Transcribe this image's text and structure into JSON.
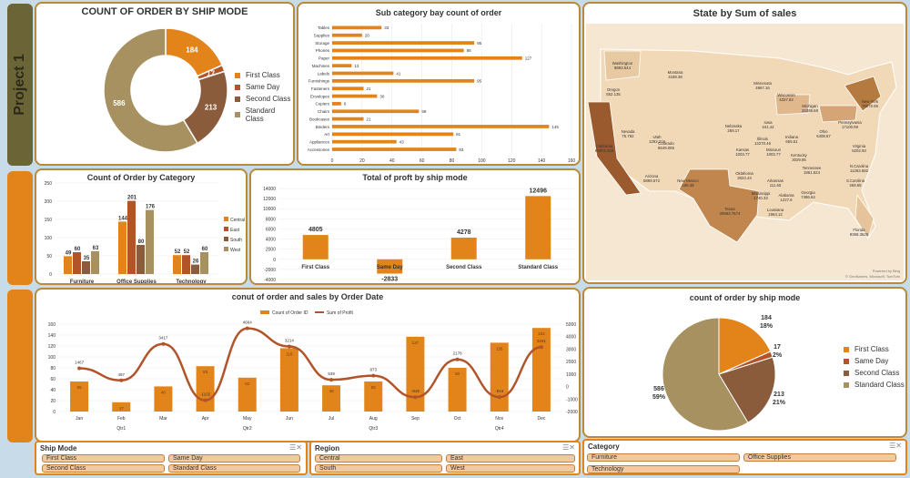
{
  "project_label": "Project 1",
  "colors": {
    "orange": "#e3841b",
    "rust": "#b2542a",
    "brown": "#8b5c3c",
    "tan": "#a89160"
  },
  "donut": {
    "title": "COUNT OF ORDER BY SHIP MODE",
    "legend": [
      "First Class",
      "Same Day",
      "Second Class",
      "Standard Class"
    ]
  },
  "subcat": {
    "title": "Sub category bay count of order"
  },
  "map": {
    "title": "State by Sum of sales",
    "credit": "Powered by Bing",
    "copyright": "© GeoNames, Microsoft, TomTom"
  },
  "category": {
    "title": "Count of Order by Category",
    "legend": [
      "Central",
      "East",
      "South",
      "West"
    ]
  },
  "profit": {
    "title": "Total of proft by ship mode"
  },
  "combo": {
    "title": "conut of order  and sales by Order Date",
    "legend": [
      "Count of Order ID",
      "Sum of Profit"
    ]
  },
  "pie": {
    "title": "count of order by ship mode",
    "legend": [
      "First Class",
      "Same Day",
      "Second Class",
      "Standard Class"
    ]
  },
  "slicers": {
    "ship_mode": {
      "title": "Ship Mode",
      "items": [
        "First Class",
        "Same Day",
        "Second Class",
        "Standard Class"
      ]
    },
    "region": {
      "title": "Region",
      "items": [
        "Central",
        "East",
        "South",
        "West"
      ]
    },
    "category": {
      "title": "Category",
      "items": [
        "Furniture",
        "Office Supplies",
        "Technology"
      ]
    }
  },
  "map_labels": [
    "Washington\n8893.644",
    "Montana\n4189.38",
    "Oregon\n552.135",
    "Minnesota\n4967.16",
    "Wisconsin\n4327.82",
    "Michigan\n26386.68",
    "New York\n76070.96",
    "Nevada\n75.792",
    "Utah\n1293.216",
    "Colorado\n8649.085",
    "Nebraska\n258.17",
    "Iowa\n441.42",
    "Illinois\n13270.46",
    "Indiana\n655.51",
    "Ohio\n6408.67",
    "Pennsylvania\n17100.99",
    "California\n85874.326",
    "Kansas\n1003.77",
    "Missouri\n1003.77",
    "Kentucky\n3029.85",
    "Virginia\n5202.93",
    "Arizona\n5899.572",
    "New Mexico\n186.39",
    "Oklahoma\n3023.43",
    "Arkansas\n111.60",
    "Tennessee\n1961.524",
    "Texas\n30592.7674",
    "Mississippi\n1740.33",
    "Alabama\n1227.6",
    "Georgia\n7486.64",
    "Louisiana\n1963.12",
    "Florida\n9368.3625",
    "N.Carolina\n11263.582",
    "S.Carolina\n468.65"
  ],
  "chart_data": [
    {
      "type": "pie",
      "title": "COUNT OF ORDER BY SHIP MODE",
      "categories": [
        "First Class",
        "Same Day",
        "Second Class",
        "Standard Class"
      ],
      "values": [
        184,
        17,
        213,
        586
      ]
    },
    {
      "type": "bar",
      "title": "Sub category bay count of order",
      "categories": [
        "Tables",
        "Supplies",
        "Storage",
        "Phones",
        "Paper",
        "Machines",
        "Labels",
        "Furnishings",
        "Fasteners",
        "Envelopes",
        "Copiers",
        "Chairs",
        "Bookcases",
        "Binders",
        "Art",
        "Appliances",
        "Accessories"
      ],
      "values": [
        33,
        20,
        95,
        88,
        127,
        13,
        41,
        95,
        21,
        30,
        6,
        58,
        21,
        145,
        81,
        43,
        83
      ],
      "xlim": [
        0,
        160
      ],
      "xticks": [
        0,
        20,
        40,
        60,
        80,
        100,
        120,
        140,
        160
      ]
    },
    {
      "type": "bar",
      "title": "Count of Order by Category",
      "categories": [
        "Furniture",
        "Office Supplies",
        "Technology"
      ],
      "series": [
        {
          "name": "Central",
          "values": [
            49,
            144,
            52
          ]
        },
        {
          "name": "East",
          "values": [
            60,
            201,
            52
          ]
        },
        {
          "name": "South",
          "values": [
            35,
            80,
            26
          ]
        },
        {
          "name": "West",
          "values": [
            63,
            176,
            60
          ]
        }
      ],
      "ylim": [
        0,
        250
      ],
      "yticks": [
        0,
        50,
        100,
        150,
        200,
        250
      ]
    },
    {
      "type": "bar",
      "title": "Total of proft by ship mode",
      "categories": [
        "First Class",
        "Same Day",
        "Second Class",
        "Standard Class"
      ],
      "values": [
        4805,
        -2833,
        4278,
        12496
      ],
      "ylim": [
        -4000,
        14000
      ],
      "yticks": [
        -4000,
        -2000,
        0,
        2000,
        4000,
        6000,
        8000,
        10000,
        12000,
        14000
      ]
    },
    {
      "type": "bar",
      "title": "conut of order  and sales by Order Date",
      "categories": [
        "Jan",
        "Feb",
        "Mar",
        "Apr",
        "May",
        "Jun",
        "Jul",
        "Aug",
        "Sep",
        "Oct",
        "Nov",
        "Dec"
      ],
      "quarters": [
        "Qtr1",
        "Qtr2",
        "Qtr3",
        "Qtr4"
      ],
      "series": [
        {
          "name": "Count of Order ID",
          "type": "bar",
          "values": [
            55,
            17,
            46,
            83,
            62,
            116,
            48,
            55,
            137,
            80,
            126,
            153
          ]
        },
        {
          "name": "Sum of Profit",
          "type": "line",
          "axis": "right",
          "values": [
            1467,
            497,
            3417,
            -1102,
            4664,
            3214,
            539,
            873,
            -848,
            2178,
            -844,
            3161
          ]
        }
      ],
      "ylim": [
        0,
        160
      ],
      "yticks": [
        0,
        20,
        40,
        60,
        80,
        100,
        120,
        140,
        160
      ],
      "y2lim": [
        -2000,
        5000
      ],
      "y2ticks": [
        -2000,
        -1000,
        0,
        1000,
        2000,
        3000,
        4000,
        5000
      ]
    },
    {
      "type": "pie",
      "title": "count of order by ship mode",
      "categories": [
        "First Class",
        "Same Day",
        "Second Class",
        "Standard Class"
      ],
      "values": [
        184,
        17,
        213,
        586
      ],
      "percent_labels": [
        "18%",
        "2%",
        "21%",
        "59%"
      ]
    }
  ]
}
